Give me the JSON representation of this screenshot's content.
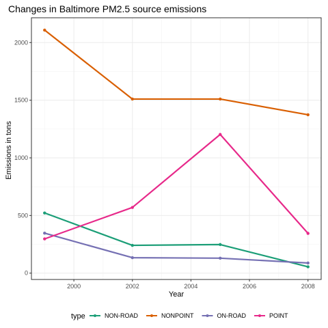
{
  "chart_data": {
    "type": "line",
    "title": "Changes in Baltimore PM2.5 source emissions",
    "xlabel": "Year",
    "ylabel": "Emissions in tons",
    "x": [
      1999,
      2002,
      2005,
      2008
    ],
    "xlim": [
      1998.55,
      2008.45
    ],
    "ylim": [
      -55,
      2215
    ],
    "x_ticks": [
      2000,
      2002,
      2004,
      2006,
      2008
    ],
    "y_ticks": [
      0,
      500,
      1000,
      1500,
      2000
    ],
    "grid": true,
    "legend": {
      "title": "type",
      "position": "bottom"
    },
    "series": [
      {
        "name": "NON-ROAD",
        "color": "#1b9e77",
        "values": [
          522,
          241,
          248,
          55
        ]
      },
      {
        "name": "NONPOINT",
        "color": "#d95f02",
        "values": [
          2108,
          1510,
          1510,
          1374
        ]
      },
      {
        "name": "ON-ROAD",
        "color": "#7570b3",
        "values": [
          347,
          134,
          130,
          88
        ]
      },
      {
        "name": "POINT",
        "color": "#e7298a",
        "values": [
          297,
          570,
          1203,
          345
        ]
      }
    ]
  }
}
